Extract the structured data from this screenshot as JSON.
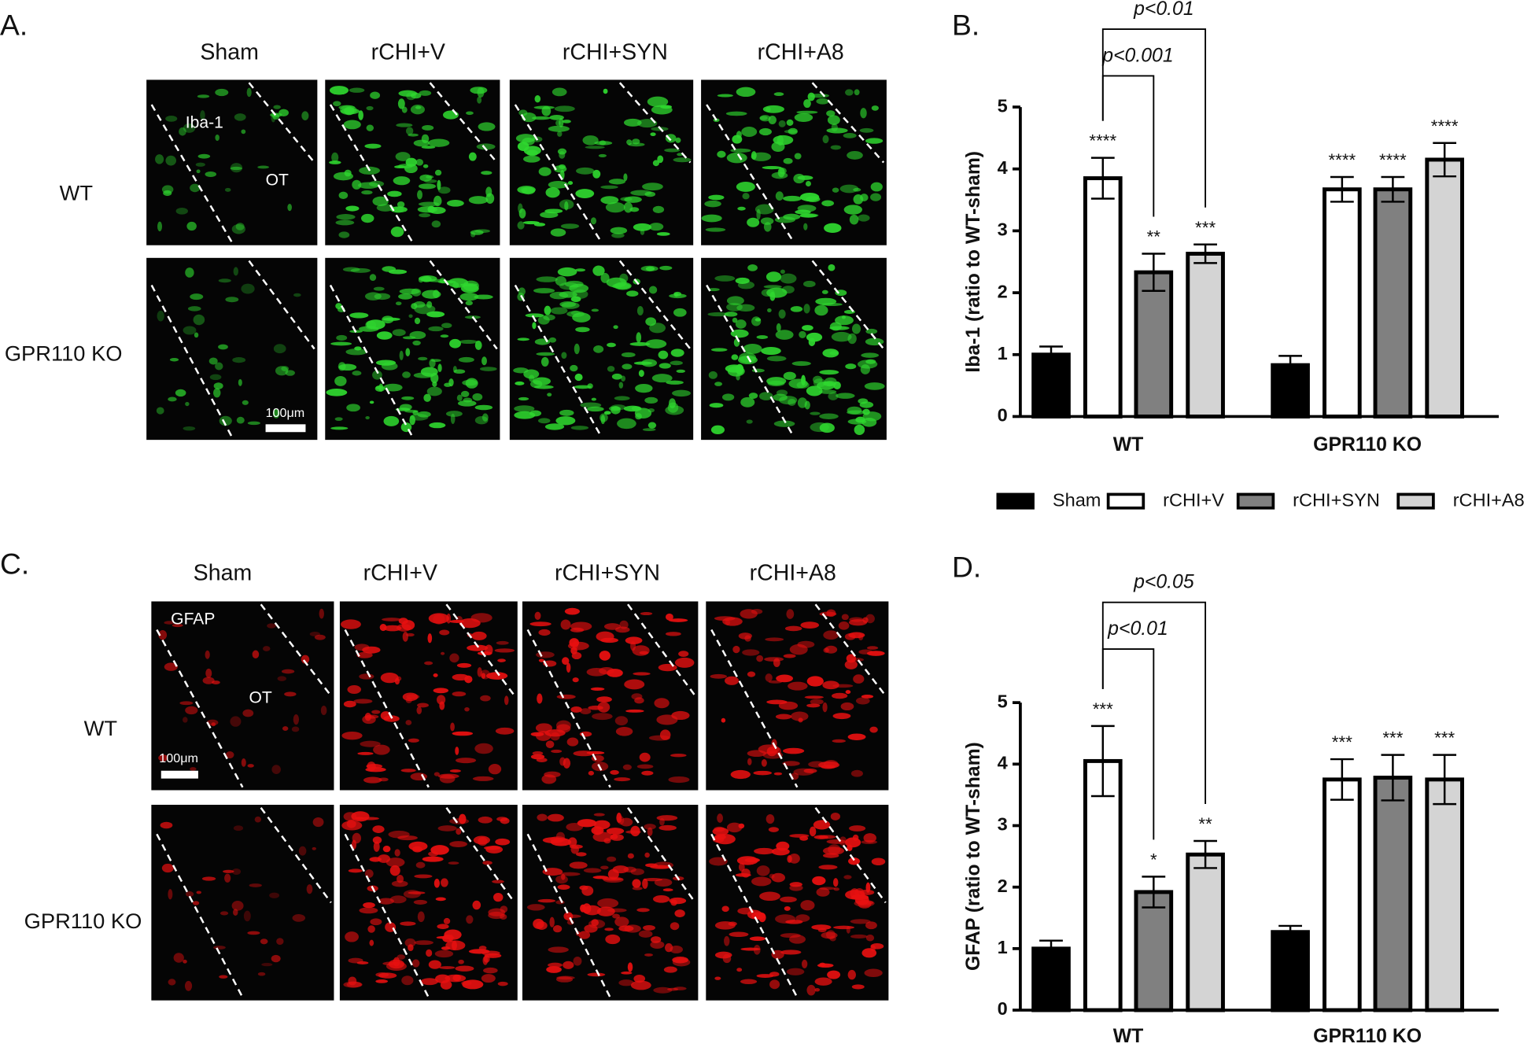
{
  "panels": [
    {
      "label": "A.",
      "columns": [
        "Sham",
        "rCHI+V",
        "rCHI+SYN",
        "rCHI+A8"
      ],
      "rows": [
        "WT",
        "GPR110 KO"
      ],
      "stain": "Iba-1",
      "region": "OT",
      "scale_bar": "100μm",
      "color": "#2fd82f"
    },
    {
      "label": "C.",
      "columns": [
        "Sham",
        "rCHI+V",
        "rCHI+SYN",
        "rCHI+A8"
      ],
      "rows": [
        "WT",
        "GPR110 KO"
      ],
      "stain": "GFAP",
      "region": "OT",
      "scale_bar": "100μm",
      "color": "#e81010"
    }
  ],
  "chart_data": [
    {
      "type": "bar",
      "label": "B.",
      "ylabel": "Iba-1 (ratio to WT-sham)",
      "categories": [
        "WT",
        "GPR110 KO"
      ],
      "ylim": [
        0,
        5
      ],
      "yticks": [
        0,
        1,
        2,
        3,
        4,
        5
      ],
      "legend": "bottom",
      "series": [
        {
          "name": "Sham",
          "color": "#000000",
          "values": [
            1.0,
            0.83
          ],
          "errors": [
            0.13,
            0.15
          ],
          "significance": [
            null,
            null
          ]
        },
        {
          "name": "rCHI+V",
          "color": "#ffffff",
          "values": [
            3.85,
            3.67
          ],
          "errors": [
            0.33,
            0.2
          ],
          "significance": [
            "****",
            "****"
          ]
        },
        {
          "name": "rCHI+SYN",
          "color": "#808080",
          "values": [
            2.33,
            3.67
          ],
          "errors": [
            0.3,
            0.2
          ],
          "significance": [
            "**",
            "****"
          ]
        },
        {
          "name": "rCHI+A8",
          "color": "#d4d4d4",
          "values": [
            2.63,
            4.15
          ],
          "errors": [
            0.15,
            0.27
          ],
          "significance": [
            "***",
            "****"
          ]
        }
      ],
      "comparisons": [
        {
          "label": "p<0.001",
          "between": [
            "rCHI+V",
            "rCHI+SYN"
          ]
        },
        {
          "label": "p<0.01",
          "between": [
            "rCHI+V",
            "rCHI+A8"
          ]
        }
      ]
    },
    {
      "type": "bar",
      "label": "D.",
      "ylabel": "GFAP (ratio to WT-sham)",
      "categories": [
        "WT",
        "GPR110 KO"
      ],
      "ylim": [
        0,
        5
      ],
      "yticks": [
        0,
        1,
        2,
        3,
        4,
        5
      ],
      "legend": "none",
      "series": [
        {
          "name": "Sham",
          "color": "#000000",
          "values": [
            1.0,
            1.27
          ],
          "errors": [
            0.13,
            0.1
          ],
          "significance": [
            null,
            null
          ]
        },
        {
          "name": "rCHI+V",
          "color": "#ffffff",
          "values": [
            4.05,
            3.75
          ],
          "errors": [
            0.57,
            0.33
          ],
          "significance": [
            "***",
            "***"
          ]
        },
        {
          "name": "rCHI+SYN",
          "color": "#808080",
          "values": [
            1.92,
            3.78
          ],
          "errors": [
            0.25,
            0.37
          ],
          "significance": [
            "*",
            "***"
          ]
        },
        {
          "name": "rCHI+A8",
          "color": "#d4d4d4",
          "values": [
            2.53,
            3.75
          ],
          "errors": [
            0.22,
            0.4
          ],
          "significance": [
            "**",
            "***"
          ]
        }
      ],
      "comparisons": [
        {
          "label": "p<0.01",
          "between": [
            "rCHI+V",
            "rCHI+SYN"
          ]
        },
        {
          "label": "p<0.05",
          "between": [
            "rCHI+V",
            "rCHI+A8"
          ]
        }
      ]
    }
  ]
}
